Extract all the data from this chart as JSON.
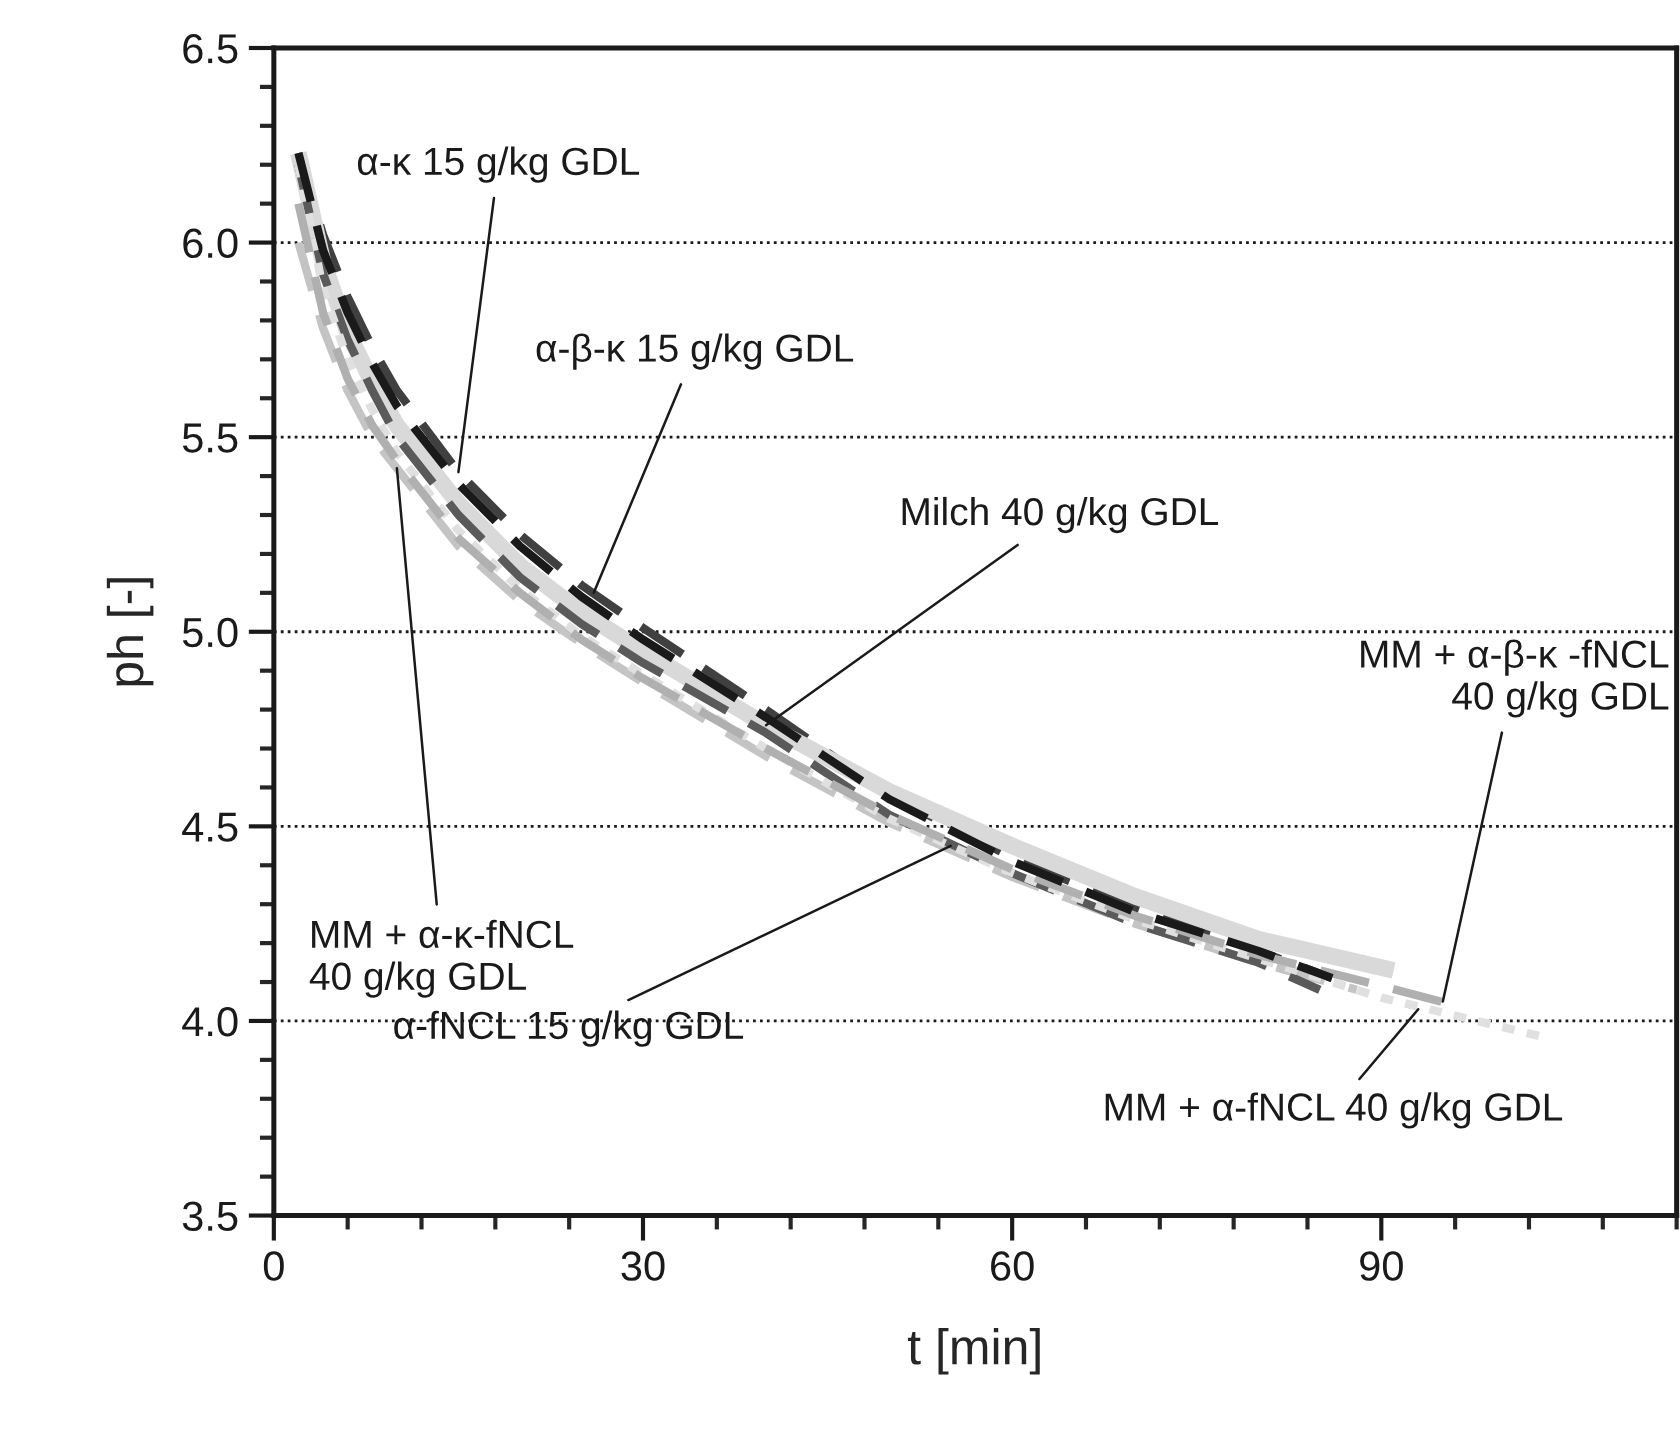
{
  "chart_data": {
    "type": "line",
    "xlabel": "t [min]",
    "ylabel": "ph [-]",
    "xlim": [
      0,
      114
    ],
    "xticks": [
      0,
      30,
      60,
      90
    ],
    "ylim": [
      3.5,
      6.5
    ],
    "yticks": [
      3.5,
      {
        "value": 4,
        "label": "4.0"
      },
      4.5,
      {
        "value": 5,
        "label": "5.0"
      },
      5.5,
      {
        "value": 6,
        "label": "6.0"
      },
      6.5
    ],
    "grid": "y",
    "marker": "none",
    "series": [
      {
        "color": "#404040",
        "line_style": "dashed",
        "x": [
          2,
          4,
          6,
          8,
          10,
          15,
          20,
          25,
          30,
          40,
          50,
          60,
          70,
          80,
          86
        ],
        "values": [
          6.23,
          6.02,
          5.86,
          5.73,
          5.62,
          5.41,
          5.25,
          5.12,
          5.01,
          4.8,
          4.58,
          4.42,
          4.29,
          4.18,
          4.11
        ]
      },
      {
        "color": "#1a1a1a",
        "line_style": "dashed",
        "x": [
          2,
          4,
          6,
          8,
          10,
          15,
          20,
          25,
          30,
          40,
          50,
          60,
          70,
          80,
          86
        ],
        "values": [
          6.23,
          5.98,
          5.82,
          5.69,
          5.58,
          5.38,
          5.22,
          5.09,
          4.98,
          4.78,
          4.57,
          4.41,
          4.28,
          4.18,
          4.11
        ]
      },
      {
        "color": "#d9d9d9",
        "line_style": "solid",
        "x": [
          2,
          4,
          6,
          8,
          10,
          15,
          20,
          25,
          30,
          40,
          50,
          60,
          70,
          80,
          91
        ],
        "values": [
          6.23,
          5.95,
          5.77,
          5.64,
          5.53,
          5.33,
          5.17,
          5.05,
          4.95,
          4.76,
          4.59,
          4.45,
          4.32,
          4.21,
          4.13
        ]
      },
      {
        "color": "#c4c4c4",
        "line_style": "dashed",
        "x": [
          2,
          4,
          6,
          8,
          10,
          15,
          20,
          25,
          30,
          40,
          50,
          60,
          70,
          80,
          88
        ],
        "values": [
          6.0,
          5.78,
          5.62,
          5.5,
          5.42,
          5.22,
          5.08,
          4.97,
          4.87,
          4.68,
          4.51,
          4.37,
          4.25,
          4.15,
          4.08
        ]
      },
      {
        "color": "#5a5a5a",
        "line_style": "dashed",
        "x": [
          2,
          4,
          6,
          8,
          10,
          15,
          20,
          25,
          30,
          40,
          50,
          60,
          70,
          80,
          85
        ],
        "values": [
          6.2,
          5.92,
          5.75,
          5.62,
          5.5,
          5.3,
          5.14,
          5.02,
          4.92,
          4.74,
          4.53,
          4.38,
          4.25,
          4.15,
          4.08
        ]
      },
      {
        "color": "#e0e0e0",
        "line_style": "dotted",
        "x": [
          2,
          4,
          6,
          8,
          10,
          15,
          20,
          25,
          30,
          40,
          50,
          60,
          70,
          80,
          90,
          103
        ],
        "values": [
          6.2,
          5.88,
          5.7,
          5.57,
          5.46,
          5.26,
          5.11,
          4.99,
          4.89,
          4.7,
          4.52,
          4.38,
          4.26,
          4.16,
          4.06,
          3.96
        ]
      },
      {
        "color": "#b0b0b0",
        "line_style": "dashed",
        "x": [
          2,
          4,
          6,
          8,
          10,
          15,
          20,
          25,
          30,
          40,
          50,
          60,
          70,
          80,
          90,
          96
        ],
        "values": [
          6.1,
          5.82,
          5.65,
          5.53,
          5.44,
          5.24,
          5.1,
          4.98,
          4.88,
          4.7,
          4.53,
          4.39,
          4.27,
          4.17,
          4.09,
          4.04
        ]
      }
    ],
    "annotations": [
      {
        "text": "α-κ 15 g/kg GDL",
        "x": 15,
        "y": 5.41
      },
      {
        "text": "α-β-κ 15 g/kg GDL",
        "x": 26,
        "y": 5.1
      },
      {
        "text": "Milch 40 g/kg GDL",
        "x": 40,
        "y": 4.76
      },
      {
        "text": "MM + α-κ-fNCL\n40 g/kg GDL",
        "x": 10,
        "y": 5.42
      },
      {
        "text": "α-fNCL 15 g/kg GDL",
        "x": 55,
        "y": 4.45
      },
      {
        "text": "MM + α-fNCL 40 g/kg GDL",
        "x": 93,
        "y": 4.03
      },
      {
        "text": "MM + α-β-κ -fNCL\n40 g/kg GDL",
        "x": 95,
        "y": 4.05
      }
    ]
  }
}
